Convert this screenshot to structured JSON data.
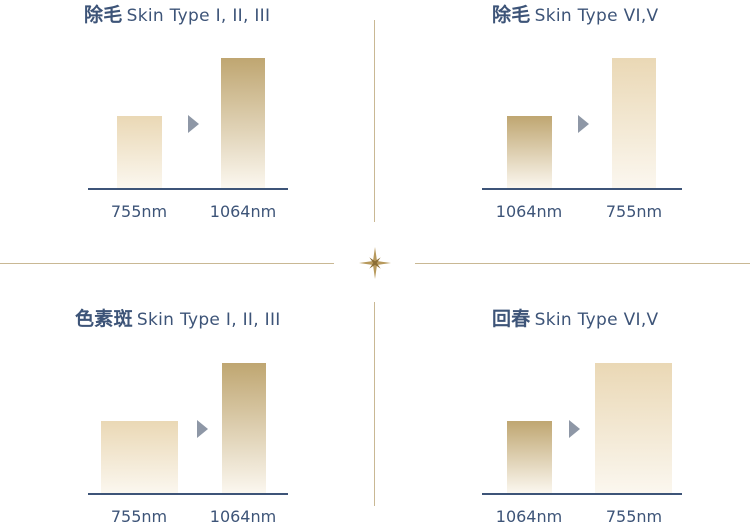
{
  "colors": {
    "title": "#3d5478",
    "axis": "#3d5478",
    "divider": "#c9b894",
    "gold_dark": "#bfa671",
    "gold_light": "#ead8b5",
    "bar_fade": "#fbf7ef",
    "arrow": "#8e97a6"
  },
  "icons": {
    "center": "sparkle-star-icon",
    "arrow": "triangle-arrow-icon"
  },
  "chart_data": [
    {
      "type": "bar",
      "title_zh": "除毛",
      "title_en": "Skin Type I, II, III",
      "categories": [
        "755nm",
        "1064nm"
      ],
      "values": [
        55,
        100
      ],
      "tones": [
        "light",
        "dark"
      ]
    },
    {
      "type": "bar",
      "title_zh": "除毛",
      "title_en": "Skin Type VI,V",
      "categories": [
        "1064nm",
        "755nm"
      ],
      "values": [
        55,
        100
      ],
      "tones": [
        "dark",
        "light"
      ]
    },
    {
      "type": "bar",
      "title_zh": "色素斑",
      "title_en": "Skin Type I, II, III",
      "categories": [
        "755nm",
        "1064nm"
      ],
      "values": [
        55,
        100
      ],
      "tones": [
        "light",
        "dark"
      ]
    },
    {
      "type": "bar",
      "title_zh": "回春",
      "title_en": "Skin Type VI,V",
      "categories": [
        "1064nm",
        "755nm"
      ],
      "values": [
        55,
        100
      ],
      "tones": [
        "dark",
        "light"
      ]
    }
  ]
}
